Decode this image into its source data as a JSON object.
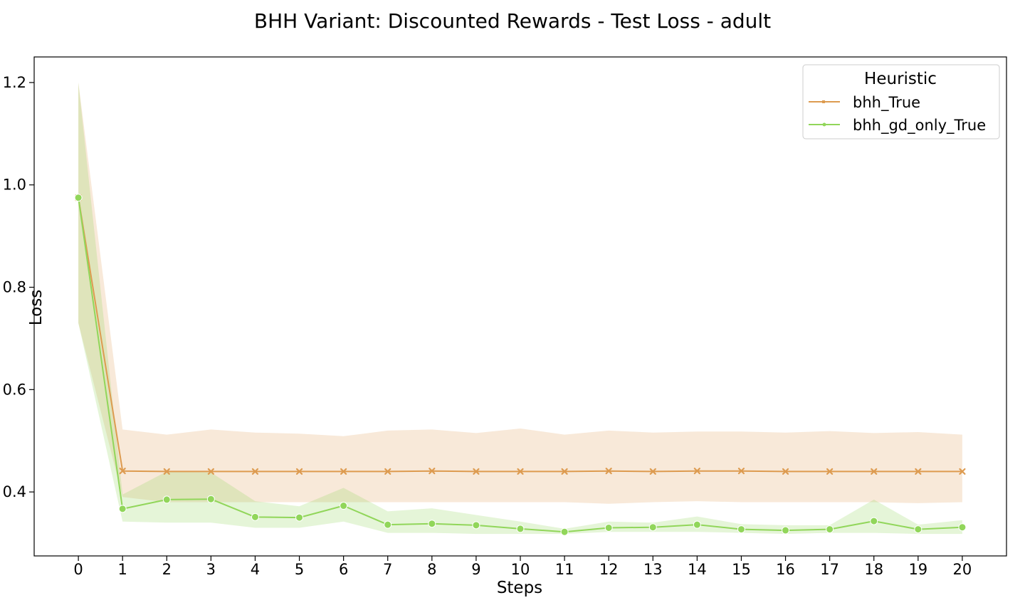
{
  "chart_data": {
    "type": "line",
    "title": "BHH Variant: Discounted Rewards - Test Loss - adult",
    "xlabel": "Steps",
    "ylabel": "Loss",
    "x": [
      0,
      1,
      2,
      3,
      4,
      5,
      6,
      7,
      8,
      9,
      10,
      11,
      12,
      13,
      14,
      15,
      16,
      17,
      18,
      19,
      20
    ],
    "xlim": [
      -1,
      21
    ],
    "ylim": [
      0.275,
      1.25
    ],
    "yticks": [
      "0.4",
      "0.6",
      "0.8",
      "1.0",
      "1.2"
    ],
    "grid": false,
    "legend": {
      "title": "Heuristic",
      "position": "top-right"
    },
    "series": [
      {
        "name": "bhh_True",
        "color": "#dd9b50",
        "marker": "x",
        "values": [
          0.975,
          0.441,
          0.44,
          0.44,
          0.44,
          0.44,
          0.44,
          0.44,
          0.441,
          0.44,
          0.44,
          0.44,
          0.441,
          0.44,
          0.441,
          0.441,
          0.44,
          0.44,
          0.44,
          0.44,
          0.44
        ],
        "lower": [
          0.73,
          0.39,
          0.38,
          0.38,
          0.38,
          0.38,
          0.38,
          0.38,
          0.38,
          0.38,
          0.38,
          0.38,
          0.377,
          0.38,
          0.382,
          0.38,
          0.38,
          0.38,
          0.38,
          0.378,
          0.38
        ],
        "upper": [
          1.2,
          0.522,
          0.512,
          0.522,
          0.516,
          0.514,
          0.509,
          0.52,
          0.522,
          0.515,
          0.524,
          0.512,
          0.52,
          0.516,
          0.518,
          0.518,
          0.516,
          0.519,
          0.515,
          0.517,
          0.512
        ]
      },
      {
        "name": "bhh_gd_only_True",
        "color": "#91d65a",
        "marker": "o",
        "values": [
          0.975,
          0.367,
          0.385,
          0.386,
          0.351,
          0.35,
          0.373,
          0.336,
          0.338,
          0.335,
          0.328,
          0.322,
          0.33,
          0.331,
          0.336,
          0.327,
          0.325,
          0.327,
          0.343,
          0.327,
          0.331
        ],
        "lower": [
          0.73,
          0.342,
          0.34,
          0.34,
          0.33,
          0.33,
          0.342,
          0.32,
          0.32,
          0.318,
          0.318,
          0.318,
          0.322,
          0.322,
          0.322,
          0.32,
          0.318,
          0.32,
          0.32,
          0.318,
          0.318
        ],
        "upper": [
          1.2,
          0.395,
          0.44,
          0.438,
          0.382,
          0.372,
          0.408,
          0.362,
          0.368,
          0.355,
          0.342,
          0.328,
          0.342,
          0.34,
          0.352,
          0.337,
          0.335,
          0.335,
          0.385,
          0.336,
          0.345
        ]
      }
    ]
  }
}
